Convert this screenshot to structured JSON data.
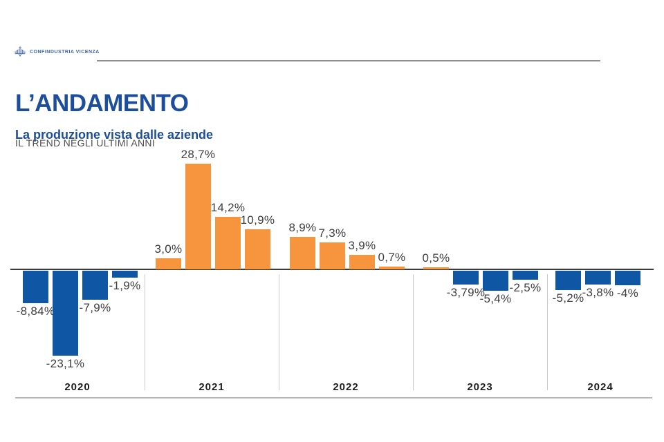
{
  "brand": {
    "logo_text": "CONFINDUSTRIA VICENZA"
  },
  "header": {
    "title": "L’ANDAMENTO",
    "subtitle": "La produzione vista dalle aziende",
    "tagline": "IL TREND NEGLI ULTIMI ANNI"
  },
  "colors": {
    "positive_bar": "#F6953E",
    "negative_bar": "#0F56A5",
    "title_blue": "#1C4E9C",
    "axis": "#3C3C3E"
  },
  "chart_data": {
    "type": "bar",
    "title": "La produzione vista dalle aziende - IL TREND NEGLI ULTIMI ANNI",
    "unit": "%",
    "xlabel": "",
    "ylabel": "",
    "ylim": [
      -25,
      30
    ],
    "grid": false,
    "legend": "none (color encodes sign: orange = positive, blue = negative)",
    "categories": [
      "2020",
      "2021",
      "2022",
      "2023",
      "2024"
    ],
    "groups": [
      {
        "year": "2020",
        "values": [
          -8.84,
          -23.1,
          -7.9,
          -1.9
        ],
        "labels": [
          "-8,84%",
          "-23,1%",
          "-7,9%",
          "-1,9%"
        ]
      },
      {
        "year": "2021",
        "values": [
          3.0,
          28.7,
          14.2,
          10.9
        ],
        "labels": [
          "3,0%",
          "28,7%",
          "14,2%",
          "10,9%"
        ]
      },
      {
        "year": "2022",
        "values": [
          8.9,
          7.3,
          3.9,
          0.7
        ],
        "labels": [
          "8,9%",
          "7,3%",
          "3,9%",
          "0,7%"
        ]
      },
      {
        "year": "2023",
        "values": [
          0.5,
          -3.79,
          -5.4,
          -2.5
        ],
        "labels": [
          "0,5%",
          "-3,79%",
          "-5,4%",
          "-2,5%"
        ]
      },
      {
        "year": "2024",
        "values": [
          -5.2,
          -3.8,
          -4.0
        ],
        "labels": [
          "-5,2%",
          "-3,8%",
          "-4%"
        ]
      }
    ]
  }
}
